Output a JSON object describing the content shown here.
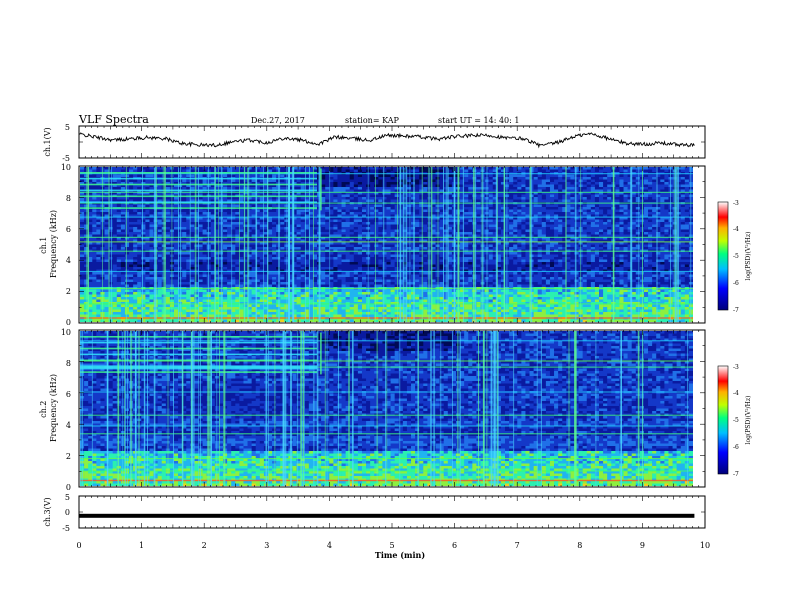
{
  "header": {
    "title": "VLF Spectra",
    "date": "Dec.27, 2017",
    "station": "station= KAP",
    "start": "start  UT =   14: 40: 1"
  },
  "chart_data": [
    {
      "type": "line",
      "panel": "ch1-waveform",
      "ylabel": "ch.1(V)",
      "ylim": [
        -5,
        5
      ],
      "yticks": [
        "5",
        "-5"
      ],
      "xlim": [
        0,
        10
      ],
      "x_end": 9.83,
      "level_profile": [
        2.5,
        1.5,
        0.6,
        1.0,
        1.4,
        1.1,
        -0.4,
        -0.9,
        -1.0,
        0.1,
        0.6,
        -0.2,
        1.3,
        0.6,
        -0.7,
        1.6,
        1.1,
        0.5,
        2.1,
        1.9,
        1.6,
        0.9,
        1.7,
        2.0,
        2.1,
        1.2,
        1.1,
        -1.2,
        -0.2,
        1.8,
        2.6,
        1.0,
        -0.4,
        -0.7,
        -0.3,
        -0.8,
        -1.1
      ]
    },
    {
      "type": "heatmap",
      "panel": "ch1-spectrogram",
      "ylabel": "ch.1\nFrequency (kHz)",
      "ylim": [
        0,
        10
      ],
      "yticks": [
        "0",
        "2",
        "4",
        "6",
        "8",
        "10"
      ],
      "xlim": [
        0,
        10
      ],
      "colorbar": {
        "label": "log(PSD)(V²/Hz)",
        "range": [
          -7,
          -3
        ],
        "ticks": [
          "-3",
          "-4",
          "-5",
          "-6",
          "-7"
        ]
      }
    },
    {
      "type": "heatmap",
      "panel": "ch2-spectrogram",
      "ylabel": "ch.2\nFrequency (kHz)",
      "ylim": [
        0,
        10
      ],
      "yticks": [
        "0",
        "2",
        "4",
        "6",
        "8",
        "10"
      ],
      "xlim": [
        0,
        10
      ],
      "colorbar": {
        "label": "log(PSD)(V²/Hz)",
        "range": [
          -7,
          -3
        ],
        "ticks": [
          "-3",
          "-4",
          "-5",
          "-6",
          "-7"
        ]
      }
    },
    {
      "type": "line",
      "panel": "ch3-waveform",
      "ylabel": "ch.3(V)",
      "ylim": [
        -5,
        5
      ],
      "yticks": [
        "5",
        "0",
        "-5"
      ],
      "xlim": [
        0,
        10
      ],
      "x_end": 9.83,
      "constant_value": -1.2
    }
  ],
  "xaxis": {
    "label": "Time  (min)",
    "ticks": [
      "0",
      "1",
      "2",
      "3",
      "4",
      "5",
      "6",
      "7",
      "8",
      "9",
      "10"
    ]
  }
}
